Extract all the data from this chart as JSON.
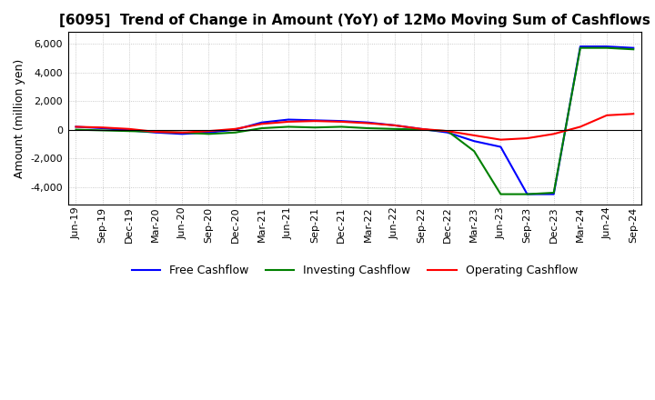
{
  "title": "[6095]  Trend of Change in Amount (YoY) of 12Mo Moving Sum of Cashflows",
  "ylabel": "Amount (million yen)",
  "title_fontsize": 11,
  "label_fontsize": 9,
  "tick_fontsize": 8,
  "ylim": [
    -5200,
    6800
  ],
  "yticks": [
    -4000,
    -2000,
    0,
    2000,
    4000,
    6000
  ],
  "x_labels": [
    "Jun-19",
    "Sep-19",
    "Dec-19",
    "Mar-20",
    "Jun-20",
    "Sep-20",
    "Dec-20",
    "Mar-21",
    "Jun-21",
    "Sep-21",
    "Dec-21",
    "Mar-22",
    "Jun-22",
    "Sep-22",
    "Dec-22",
    "Mar-23",
    "Jun-23",
    "Sep-23",
    "Dec-23",
    "Mar-24",
    "Jun-24",
    "Sep-24"
  ],
  "operating_cashflow": [
    200,
    150,
    50,
    -150,
    -200,
    -100,
    50,
    400,
    550,
    600,
    550,
    450,
    300,
    50,
    -100,
    -400,
    -700,
    -600,
    -300,
    200,
    1000,
    1100
  ],
  "investing_cashflow": [
    0,
    -50,
    -100,
    -150,
    -200,
    -300,
    -200,
    100,
    200,
    150,
    200,
    100,
    50,
    0,
    -100,
    -1500,
    -4500,
    -4500,
    -4400,
    5700,
    5700,
    5600
  ],
  "free_cashflow": [
    200,
    100,
    -50,
    -200,
    -300,
    -200,
    0,
    500,
    700,
    650,
    600,
    500,
    300,
    50,
    -200,
    -800,
    -1200,
    -4500,
    -4500,
    5800,
    5800,
    5700
  ],
  "operating_color": "#ff0000",
  "investing_color": "#008000",
  "free_color": "#0000ff",
  "grid_color": "#bbbbbb",
  "background_color": "#ffffff"
}
